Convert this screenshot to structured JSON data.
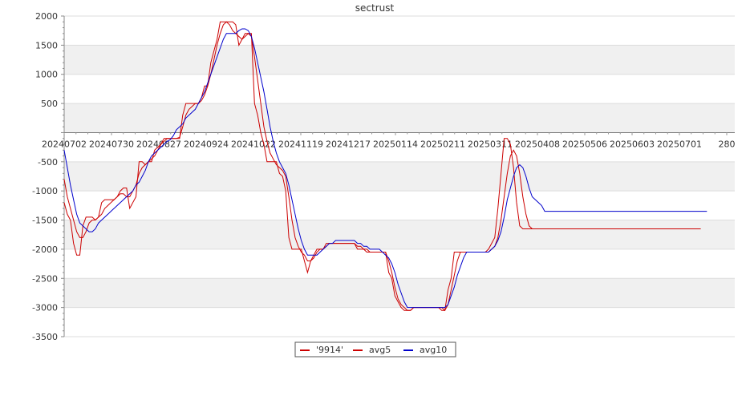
{
  "chart_data": {
    "type": "line",
    "title": "sectrust",
    "xlabel": "",
    "ylabel": "",
    "ylim": [
      -3500,
      2000
    ],
    "y_ticks": [
      2000,
      1500,
      1000,
      500,
      -500,
      -1000,
      -1500,
      -2000,
      -2500,
      -3000,
      -3500
    ],
    "x_ticks": [
      "20240702",
      "20240730",
      "20240827",
      "20240924",
      "20241022",
      "20241119",
      "20241217",
      "20250114",
      "20250211",
      "20250311",
      "20250408",
      "20250506",
      "20250603",
      "20250701",
      "280"
    ],
    "grid": true,
    "legend_position": "bottom",
    "series": [
      {
        "name": "'9914'",
        "color": "#cc0000",
        "values": [
          -1200,
          -1400,
          -1500,
          -1900,
          -2100,
          -2100,
          -1600,
          -1450,
          -1450,
          -1450,
          -1500,
          -1450,
          -1200,
          -1150,
          -1150,
          -1150,
          -1150,
          -1100,
          -1000,
          -950,
          -950,
          -1300,
          -1200,
          -1100,
          -500,
          -500,
          -550,
          -500,
          -500,
          -300,
          -250,
          -200,
          -100,
          -100,
          -100,
          -100,
          -100,
          -100,
          300,
          500,
          500,
          500,
          500,
          500,
          600,
          800,
          800,
          1200,
          1400,
          1600,
          1900,
          1900,
          1900,
          1900,
          1900,
          1850,
          1500,
          1600,
          1700,
          1700,
          1700,
          500,
          300,
          0,
          -200,
          -500,
          -500,
          -500,
          -500,
          -700,
          -750,
          -1000,
          -1800,
          -2000,
          -2000,
          -2000,
          -2000,
          -2200,
          -2400,
          -2200,
          -2100,
          -2000,
          -2000,
          -2000,
          -1900,
          -1900,
          -1900,
          -1900,
          -1900,
          -1900,
          -1900,
          -1900,
          -1900,
          -1900,
          -2000,
          -2000,
          -2000,
          -2050,
          -2050,
          -2050,
          -2050,
          -2050,
          -2050,
          -2050,
          -2400,
          -2500,
          -2800,
          -2900,
          -3000,
          -3050,
          -3050,
          -3050,
          -3000,
          -3000,
          -3000,
          -3000,
          -3000,
          -3000,
          -3000,
          -3000,
          -3000,
          -3050,
          -3050,
          -2700,
          -2500,
          -2050,
          -2050,
          -2050,
          -2050,
          -2050,
          -2050,
          -2050,
          -2050,
          -2050,
          -2050,
          -2050,
          -2000,
          -1900,
          -1800,
          -1300,
          -700,
          -100,
          -100,
          -200,
          -600,
          -1200,
          -1600,
          -1650,
          -1650,
          -1650,
          -1650,
          -1650,
          -1650,
          -1650,
          -1650,
          -1650,
          -1650,
          -1650,
          -1650,
          -1650,
          -1650,
          -1650,
          -1650,
          -1650,
          -1650,
          -1650,
          -1650,
          -1650,
          -1650,
          -1650,
          -1650,
          -1650,
          -1650,
          -1650,
          -1650,
          -1650,
          -1650,
          -1650,
          -1650,
          -1650,
          -1650,
          -1650,
          -1650,
          -1650,
          -1650,
          -1650,
          -1650,
          -1650,
          -1650,
          -1650,
          -1650,
          -1650,
          -1650,
          -1650,
          -1650,
          -1650,
          -1650,
          -1650,
          -1650,
          -1650,
          -1650
        ]
      },
      {
        "name": "avg5",
        "color": "#cc0000",
        "values": [
          -800,
          -1100,
          -1300,
          -1500,
          -1700,
          -1800,
          -1800,
          -1700,
          -1550,
          -1500,
          -1500,
          -1450,
          -1400,
          -1300,
          -1250,
          -1200,
          -1150,
          -1100,
          -1050,
          -1050,
          -1100,
          -1100,
          -1000,
          -900,
          -700,
          -600,
          -550,
          -500,
          -450,
          -400,
          -300,
          -200,
          -150,
          -100,
          -100,
          -100,
          -100,
          -80,
          100,
          300,
          400,
          450,
          500,
          500,
          550,
          650,
          800,
          1000,
          1250,
          1500,
          1700,
          1850,
          1900,
          1850,
          1750,
          1700,
          1650,
          1600,
          1650,
          1700,
          1650,
          1300,
          900,
          500,
          100,
          -150,
          -350,
          -450,
          -550,
          -600,
          -650,
          -750,
          -1100,
          -1500,
          -1800,
          -1950,
          -2050,
          -2100,
          -2200,
          -2200,
          -2150,
          -2050,
          -2000,
          -2000,
          -1950,
          -1900,
          -1900,
          -1900,
          -1900,
          -1900,
          -1900,
          -1900,
          -1900,
          -1900,
          -1950,
          -1950,
          -2000,
          -2000,
          -2050,
          -2050,
          -2050,
          -2050,
          -2050,
          -2050,
          -2200,
          -2400,
          -2650,
          -2850,
          -2950,
          -3000,
          -3050,
          -3050,
          -3000,
          -3000,
          -3000,
          -3000,
          -3000,
          -3000,
          -3000,
          -3000,
          -3000,
          -3000,
          -3050,
          -2950,
          -2700,
          -2450,
          -2200,
          -2050,
          -2050,
          -2050,
          -2050,
          -2050,
          -2050,
          -2050,
          -2050,
          -2050,
          -2050,
          -2000,
          -1950,
          -1800,
          -1500,
          -1100,
          -700,
          -400,
          -300,
          -400,
          -700,
          -1100,
          -1400,
          -1600,
          -1650,
          -1650,
          -1650,
          -1650,
          -1650,
          -1650,
          -1650,
          -1650,
          -1650,
          -1650,
          -1650,
          -1650,
          -1650,
          -1650,
          -1650,
          -1650,
          -1650,
          -1650,
          -1650,
          -1650,
          -1650,
          -1650,
          -1650,
          -1650,
          -1650,
          -1650,
          -1650,
          -1650,
          -1650,
          -1650,
          -1650,
          -1650,
          -1650,
          -1650,
          -1650,
          -1650,
          -1650,
          -1650,
          -1650,
          -1650,
          -1650,
          -1650,
          -1650,
          -1650,
          -1650,
          -1650,
          -1650,
          -1650,
          -1650,
          -1650,
          -1650,
          -1650,
          -1650,
          -1650,
          -1650
        ]
      },
      {
        "name": "avg10",
        "color": "#0000cc",
        "values": [
          -300,
          -600,
          -900,
          -1150,
          -1400,
          -1550,
          -1600,
          -1650,
          -1700,
          -1700,
          -1650,
          -1550,
          -1500,
          -1450,
          -1400,
          -1350,
          -1300,
          -1250,
          -1200,
          -1150,
          -1100,
          -1050,
          -1000,
          -900,
          -850,
          -750,
          -650,
          -500,
          -400,
          -350,
          -300,
          -250,
          -200,
          -150,
          -120,
          -50,
          50,
          100,
          150,
          250,
          300,
          350,
          400,
          500,
          600,
          700,
          850,
          1000,
          1150,
          1300,
          1450,
          1600,
          1700,
          1700,
          1700,
          1700,
          1750,
          1780,
          1780,
          1750,
          1650,
          1450,
          1200,
          950,
          700,
          400,
          100,
          -150,
          -350,
          -500,
          -600,
          -700,
          -900,
          -1150,
          -1400,
          -1650,
          -1850,
          -2000,
          -2100,
          -2100,
          -2100,
          -2100,
          -2050,
          -2000,
          -1950,
          -1900,
          -1900,
          -1850,
          -1850,
          -1850,
          -1850,
          -1850,
          -1850,
          -1850,
          -1900,
          -1900,
          -1950,
          -1950,
          -2000,
          -2000,
          -2000,
          -2000,
          -2050,
          -2100,
          -2150,
          -2250,
          -2400,
          -2600,
          -2750,
          -2900,
          -3000,
          -3000,
          -3000,
          -3000,
          -3000,
          -3000,
          -3000,
          -3000,
          -3000,
          -3000,
          -3000,
          -3000,
          -3000,
          -2950,
          -2800,
          -2650,
          -2450,
          -2300,
          -2150,
          -2050,
          -2050,
          -2050,
          -2050,
          -2050,
          -2050,
          -2050,
          -2050,
          -2000,
          -1950,
          -1850,
          -1700,
          -1450,
          -1150,
          -950,
          -750,
          -600,
          -550,
          -600,
          -750,
          -950,
          -1100,
          -1150,
          -1200,
          -1250,
          -1350,
          -1350,
          -1350,
          -1350,
          -1350,
          -1350,
          -1350,
          -1350,
          -1350,
          -1350,
          -1350,
          -1350,
          -1350,
          -1350,
          -1350,
          -1350,
          -1350,
          -1350,
          -1350,
          -1350,
          -1350,
          -1350,
          -1350,
          -1350,
          -1350,
          -1350,
          -1350,
          -1350,
          -1350,
          -1350,
          -1350,
          -1350,
          -1350,
          -1350,
          -1350,
          -1350,
          -1350,
          -1350,
          -1350,
          -1350,
          -1350,
          -1350,
          -1350,
          -1350,
          -1350,
          -1350,
          -1350,
          -1350,
          -1350,
          -1350,
          -1350,
          -1350,
          -1350
        ]
      }
    ]
  }
}
